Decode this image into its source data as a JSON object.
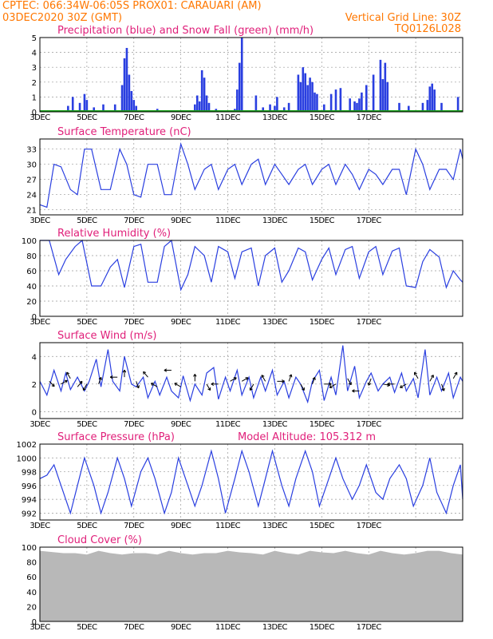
{
  "header": {
    "line1": "CPTEC:   066:34W-06:05S   PROX01: CARAUARI (AM)",
    "line2_left": "03DEC2020 30Z (GMT)",
    "line2_right": "Vertical Grid Line: 30Z",
    "code": "TQ0126L028"
  },
  "colors": {
    "header": "#ff7700",
    "title": "#e0207a",
    "line": "#2a3fe0",
    "snow": "#19a019",
    "cloud": "#b8b8b8"
  },
  "x_labels": [
    "3DEC",
    "5DEC",
    "7DEC",
    "9DEC",
    "11DEC",
    "13DEC",
    "15DEC",
    "17DEC"
  ],
  "chart_data": [
    {
      "id": "precip",
      "type": "bar",
      "title": "Precipitation (blue) and Snow Fall (green) (mm/h)",
      "ylim": [
        0,
        5
      ],
      "yticks": [
        "0",
        "1",
        "2",
        "3",
        "4",
        "5"
      ],
      "x": [
        1.2,
        1.4,
        1.7,
        1.9,
        2.0,
        2.3,
        2.7,
        3.2,
        3.5,
        3.6,
        3.7,
        3.8,
        3.9,
        4.0,
        4.1,
        4.2,
        5.0,
        6.6,
        6.7,
        6.8,
        6.9,
        7.0,
        7.1,
        7.2,
        7.5,
        8.1,
        8.3,
        8.4,
        8.5,
        8.6,
        9.2,
        9.5,
        9.8,
        10.0,
        10.1,
        10.4,
        10.6,
        11.0,
        11.1,
        11.2,
        11.3,
        11.4,
        11.5,
        11.6,
        11.7,
        11.8,
        12.1,
        12.4,
        12.6,
        12.8,
        13.2,
        13.4,
        13.5,
        13.6,
        13.7,
        13.9,
        14.2,
        14.5,
        14.6,
        14.7,
        14.8,
        15.3,
        15.7,
        16.3,
        16.5,
        16.6,
        16.7,
        16.8,
        17.1,
        17.8
      ],
      "values": [
        0.4,
        1.0,
        0.6,
        1.2,
        0.8,
        0.3,
        0.5,
        0.5,
        1.8,
        3.6,
        4.3,
        2.5,
        1.4,
        0.8,
        0.4,
        0.1,
        0.2,
        0.5,
        1.1,
        0.7,
        2.8,
        2.3,
        1.1,
        0.6,
        0.2,
        0.1,
        0.2,
        1.5,
        3.3,
        5.0,
        1.1,
        0.3,
        0.5,
        0.4,
        1.0,
        0.3,
        0.6,
        2.5,
        2.0,
        3.0,
        2.6,
        1.8,
        2.3,
        2.0,
        1.3,
        1.2,
        0.5,
        1.2,
        1.5,
        1.6,
        0.9,
        0.7,
        0.6,
        0.9,
        1.3,
        1.8,
        2.5,
        3.5,
        2.2,
        3.3,
        2.0,
        0.6,
        0.4,
        0.6,
        0.8,
        1.7,
        1.9,
        1.5,
        0.6,
        1.0
      ],
      "snow": 0
    },
    {
      "id": "temp",
      "type": "line",
      "title": "Surface Temperature (nC)",
      "ylim": [
        20,
        35
      ],
      "yticks": [
        "21",
        "24",
        "27",
        "30",
        "33"
      ],
      "ytick_values": [
        21,
        24,
        27,
        30,
        33
      ],
      "x": [
        0,
        0.3,
        0.6,
        0.9,
        1.3,
        1.6,
        1.9,
        2.2,
        2.6,
        3.0,
        3.4,
        3.7,
        4.0,
        4.3,
        4.6,
        5.0,
        5.3,
        5.6,
        6.0,
        6.3,
        6.6,
        7.0,
        7.3,
        7.6,
        8.0,
        8.3,
        8.6,
        9.0,
        9.3,
        9.6,
        10.0,
        10.3,
        10.6,
        11.0,
        11.3,
        11.6,
        12.0,
        12.3,
        12.6,
        13.0,
        13.3,
        13.6,
        14.0,
        14.3,
        14.6,
        15.0,
        15.3,
        15.6,
        16.0,
        16.3,
        16.6,
        17.0,
        17.3,
        17.6,
        17.9,
        18.0
      ],
      "values": [
        22,
        21.5,
        30,
        29.5,
        25,
        24,
        33,
        33,
        25,
        25,
        33,
        30,
        24,
        23.5,
        30,
        30,
        24,
        24,
        34,
        30,
        25,
        29,
        30,
        25,
        29,
        30,
        26,
        30,
        31,
        26,
        30,
        28,
        26,
        29,
        30,
        26,
        29,
        30,
        26,
        30,
        28,
        25,
        29,
        28,
        26,
        29,
        29,
        24,
        33,
        30,
        25,
        29,
        29,
        27,
        33,
        31
      ]
    },
    {
      "id": "rh",
      "type": "line",
      "title": "Relative Humidity (%)",
      "ylim": [
        0,
        100
      ],
      "yticks": [
        "0",
        "20",
        "40",
        "60",
        "80",
        "100"
      ],
      "ytick_values": [
        0,
        20,
        40,
        60,
        80,
        100
      ],
      "x": [
        0,
        0.4,
        0.8,
        1.1,
        1.5,
        1.8,
        2.2,
        2.6,
        3.0,
        3.3,
        3.6,
        4.0,
        4.3,
        4.6,
        5.0,
        5.3,
        5.6,
        6.0,
        6.3,
        6.6,
        7.0,
        7.3,
        7.6,
        8.0,
        8.3,
        8.6,
        9.0,
        9.3,
        9.6,
        10.0,
        10.3,
        10.6,
        11.0,
        11.3,
        11.6,
        12.0,
        12.3,
        12.6,
        13.0,
        13.3,
        13.6,
        14.0,
        14.3,
        14.6,
        15.0,
        15.3,
        15.6,
        16.0,
        16.3,
        16.6,
        17.0,
        17.3,
        17.6,
        17.9,
        18.0
      ],
      "values": [
        100,
        100,
        55,
        75,
        92,
        100,
        40,
        40,
        65,
        75,
        38,
        92,
        95,
        45,
        45,
        92,
        100,
        35,
        55,
        92,
        80,
        45,
        92,
        85,
        50,
        85,
        90,
        40,
        80,
        90,
        45,
        60,
        90,
        85,
        48,
        75,
        90,
        55,
        88,
        92,
        50,
        85,
        92,
        55,
        86,
        90,
        40,
        38,
        72,
        88,
        78,
        38,
        60,
        48,
        45
      ]
    },
    {
      "id": "wind",
      "type": "line",
      "title": "Surface Wind (m/s)",
      "ylim": [
        -0.5,
        5
      ],
      "yticks": [
        "0",
        "2",
        "4"
      ],
      "ytick_values": [
        0,
        2,
        4
      ],
      "x": [
        0,
        0.3,
        0.6,
        0.9,
        1.1,
        1.3,
        1.6,
        1.9,
        2.1,
        2.4,
        2.6,
        2.9,
        3.1,
        3.4,
        3.6,
        3.9,
        4.1,
        4.4,
        4.6,
        4.9,
        5.1,
        5.4,
        5.6,
        5.9,
        6.1,
        6.4,
        6.6,
        6.9,
        7.1,
        7.4,
        7.6,
        7.9,
        8.1,
        8.4,
        8.6,
        8.9,
        9.1,
        9.4,
        9.6,
        9.9,
        10.1,
        10.4,
        10.6,
        10.9,
        11.1,
        11.4,
        11.6,
        11.9,
        12.1,
        12.4,
        12.6,
        12.9,
        13.1,
        13.4,
        13.6,
        13.9,
        14.1,
        14.4,
        14.6,
        14.9,
        15.1,
        15.4,
        15.6,
        15.9,
        16.1,
        16.4,
        16.6,
        16.9,
        17.1,
        17.4,
        17.6,
        17.9,
        18.0
      ],
      "values": [
        2.2,
        1.2,
        3.0,
        1.5,
        2.8,
        1.6,
        2.5,
        1.5,
        2.2,
        3.8,
        1.8,
        4.5,
        2.2,
        1.5,
        4.0,
        2.0,
        1.8,
        2.5,
        1.0,
        2.2,
        1.2,
        2.5,
        1.5,
        1.0,
        2.6,
        0.8,
        2.0,
        1.2,
        2.8,
        3.2,
        0.9,
        2.5,
        1.5,
        3.0,
        1.2,
        2.5,
        1.0,
        2.5,
        1.5,
        3.0,
        1.2,
        2.2,
        1.0,
        2.5,
        2.0,
        0.7,
        2.2,
        3.0,
        0.8,
        2.5,
        1.2,
        4.8,
        1.5,
        3.3,
        1.0,
        2.2,
        2.8,
        1.5,
        2.0,
        2.5,
        1.4,
        2.8,
        1.5,
        2.4,
        1.0,
        4.5,
        1.2,
        2.5,
        1.5,
        2.8,
        1.0,
        2.5,
        2.2
      ],
      "arrows": [
        [
          0.4,
          2.2,
          135
        ],
        [
          0.9,
          2.0,
          60
        ],
        [
          1.3,
          2.4,
          330
        ],
        [
          1.6,
          1.8,
          40
        ],
        [
          2.0,
          2.0,
          210
        ],
        [
          2.5,
          2.0,
          20
        ],
        [
          3.3,
          2.5,
          270
        ],
        [
          3.6,
          2.5,
          0
        ],
        [
          4.1,
          2.2,
          160
        ],
        [
          4.6,
          2.5,
          320
        ],
        [
          5.0,
          1.8,
          300
        ],
        [
          5.6,
          3.0,
          270
        ],
        [
          6.0,
          1.8,
          300
        ],
        [
          6.6,
          2.2,
          0
        ],
        [
          7.1,
          2.0,
          150
        ],
        [
          7.6,
          2.0,
          270
        ],
        [
          8.1,
          2.2,
          60
        ],
        [
          8.6,
          2.2,
          60
        ],
        [
          9.1,
          2.0,
          210
        ],
        [
          9.6,
          2.2,
          330
        ],
        [
          10.1,
          2.2,
          90
        ],
        [
          10.6,
          2.2,
          20
        ],
        [
          11.1,
          2.0,
          150
        ],
        [
          11.6,
          2.0,
          20
        ],
        [
          12.1,
          2.0,
          90
        ],
        [
          12.6,
          2.0,
          240
        ],
        [
          13.1,
          2.4,
          150
        ],
        [
          13.6,
          1.5,
          270
        ],
        [
          14.1,
          2.4,
          200
        ],
        [
          14.6,
          2.0,
          100
        ],
        [
          15.1,
          2.0,
          270
        ],
        [
          15.6,
          2.0,
          240
        ],
        [
          16.1,
          2.4,
          330
        ],
        [
          16.6,
          2.2,
          30
        ],
        [
          17.1,
          2.0,
          160
        ],
        [
          17.6,
          2.4,
          30
        ]
      ]
    },
    {
      "id": "pres",
      "type": "line",
      "title": "Surface Pressure (hPa)",
      "note": "Model Altitude: 105.312 m",
      "ylim": [
        991,
        1002
      ],
      "yticks": [
        "992",
        "994",
        "996",
        "998",
        "1000",
        "1002"
      ],
      "ytick_values": [
        992,
        994,
        996,
        998,
        1000,
        1002
      ],
      "x": [
        0,
        0.3,
        0.6,
        0.9,
        1.3,
        1.6,
        1.9,
        2.3,
        2.6,
        2.9,
        3.3,
        3.6,
        3.9,
        4.3,
        4.6,
        4.9,
        5.3,
        5.6,
        5.9,
        6.3,
        6.6,
        6.9,
        7.3,
        7.6,
        7.9,
        8.3,
        8.6,
        8.9,
        9.3,
        9.6,
        9.9,
        10.3,
        10.6,
        10.9,
        11.3,
        11.6,
        11.9,
        12.3,
        12.6,
        12.9,
        13.3,
        13.6,
        13.9,
        14.3,
        14.6,
        14.9,
        15.3,
        15.6,
        15.9,
        16.3,
        16.6,
        16.9,
        17.3,
        17.6,
        17.9,
        18.0
      ],
      "values": [
        997,
        997.5,
        999,
        996,
        992,
        996,
        1000,
        996,
        992,
        995,
        1000,
        997,
        993,
        998,
        1000,
        997,
        992,
        995,
        1000,
        996,
        993,
        996,
        1001,
        997,
        992,
        997,
        1001,
        998,
        993,
        997,
        1001,
        996,
        993,
        997,
        1001,
        998,
        993,
        997,
        1000,
        997,
        994,
        996,
        999,
        995,
        994,
        997,
        999,
        997,
        993,
        996,
        1000,
        995,
        992,
        996,
        999,
        994
      ]
    },
    {
      "id": "cloud",
      "type": "area",
      "title": "Cloud Cover (%)",
      "ylim": [
        0,
        100
      ],
      "yticks": [
        "0",
        "20",
        "40",
        "60",
        "80",
        "100"
      ],
      "ytick_values": [
        0,
        20,
        40,
        60,
        80,
        100
      ],
      "x": [
        0,
        1,
        1.5,
        2,
        2.5,
        3,
        3.5,
        4,
        4.5,
        5,
        5.5,
        6,
        6.5,
        7,
        7.5,
        8,
        8.5,
        9,
        9.5,
        10,
        10.5,
        11,
        11.5,
        12,
        12.5,
        13,
        13.5,
        14,
        14.5,
        15,
        15.5,
        16,
        16.5,
        17,
        17.5,
        18
      ],
      "values": [
        95,
        92,
        92,
        90,
        95,
        92,
        90,
        92,
        92,
        90,
        95,
        92,
        90,
        92,
        92,
        95,
        93,
        92,
        90,
        95,
        92,
        90,
        95,
        93,
        92,
        95,
        92,
        90,
        95,
        92,
        90,
        92,
        95,
        95,
        92,
        90
      ]
    }
  ]
}
